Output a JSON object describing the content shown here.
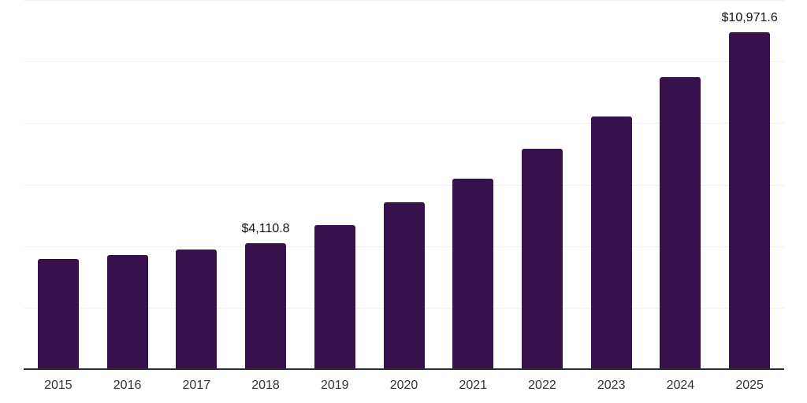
{
  "chart_data": {
    "type": "bar",
    "title": "",
    "xlabel": "",
    "ylabel": "",
    "categories": [
      "2015",
      "2016",
      "2017",
      "2018",
      "2019",
      "2020",
      "2021",
      "2022",
      "2023",
      "2024",
      "2025"
    ],
    "values": [
      3600,
      3730,
      3910,
      4110.8,
      4720,
      5440,
      6220,
      7190,
      8250,
      9510,
      10971.6
    ],
    "data_labels": [
      {
        "category": "2018",
        "text": "$4,110.8"
      },
      {
        "category": "2025",
        "text": "$10,971.6"
      }
    ],
    "ylim": [
      0,
      12000
    ],
    "gridline_interval": 2000,
    "grid": true,
    "y_axis_tick_labels_visible": false,
    "legend": "none"
  },
  "style": {
    "bar_color": "#36114B",
    "axis_color": "#2b2b2b",
    "gridline_color": "#f1f1f1",
    "value_label_color": "#111111",
    "x_tick_label_color": "#333333",
    "background_color": "#ffffff"
  }
}
